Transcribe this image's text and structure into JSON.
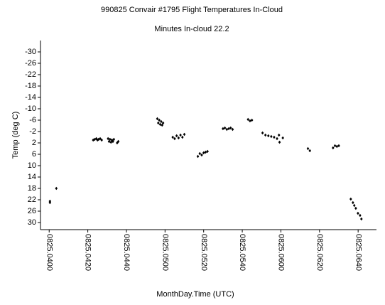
{
  "chart_data": {
    "type": "scatter",
    "title": "990825 Convair #1795 Flight Temperatures In-Cloud",
    "subtitle": "Minutes In-cloud 22.2",
    "x_label": "MonthDay.Time (UTC)",
    "y_label": "Temp (deg C)",
    "color": "#000000",
    "y_inverted": true,
    "xlim": [
      235.5,
      409.5
    ],
    "ylim": [
      -34,
      32.5
    ],
    "xticks": [
      {
        "value": 240,
        "label": "0825.0400"
      },
      {
        "value": 260,
        "label": "0825.0420"
      },
      {
        "value": 280,
        "label": "0825.0440"
      },
      {
        "value": 300,
        "label": "0825.0500"
      },
      {
        "value": 320,
        "label": "0825.0520"
      },
      {
        "value": 340,
        "label": "0825.0540"
      },
      {
        "value": 360,
        "label": "0825.0600"
      },
      {
        "value": 380,
        "label": "0825.0620"
      },
      {
        "value": 400,
        "label": "0825.0640"
      }
    ],
    "yticks": [
      -30,
      -26,
      -22,
      -18,
      -14,
      -10,
      -6,
      -2,
      2,
      6,
      10,
      14,
      18,
      22,
      26,
      30
    ],
    "x": [
      240.4,
      240.4,
      243.7,
      262.8,
      263.6,
      264.4,
      265.0,
      265.6,
      266.4,
      267.2,
      270.5,
      271,
      271.5,
      272,
      272.5,
      273,
      273.5,
      275.2,
      275.8,
      296,
      296.5,
      297,
      297.5,
      298,
      298.5,
      299,
      304,
      305,
      306,
      307,
      308,
      309,
      310,
      317,
      318,
      319,
      320,
      321,
      322,
      330,
      331,
      332,
      333,
      334,
      335,
      343,
      344,
      345,
      350.5,
      352,
      353.5,
      355,
      356.5,
      358,
      359,
      359.3,
      361,
      374,
      375,
      387,
      388,
      389,
      390,
      396.2,
      397.3,
      398,
      398.8,
      399.9,
      401,
      401.7
    ],
    "values": [
      22.5,
      23,
      18,
      1,
      0.75,
      0.5,
      1,
      0.75,
      0.5,
      1,
      0.5,
      1.5,
      0.75,
      1.75,
      1,
      1.5,
      0.75,
      2,
      1.5,
      -6.5,
      -5,
      -6,
      -4.5,
      -5.5,
      -4.25,
      -5,
      0,
      0.5,
      -0.5,
      0.25,
      -0.75,
      0,
      -1,
      6.75,
      5.75,
      6.25,
      5.5,
      5.25,
      5,
      -3,
      -3.25,
      -2.75,
      -3,
      -3.25,
      -2.75,
      -6.25,
      -5.75,
      -6,
      -1.5,
      -0.75,
      -0.5,
      -0.25,
      0,
      0.5,
      -0.75,
      1.75,
      0.25,
      4,
      4.75,
      3.75,
      3,
      3.25,
      3,
      21.75,
      23,
      24,
      25,
      26.75,
      27.5,
      28.75
    ]
  }
}
